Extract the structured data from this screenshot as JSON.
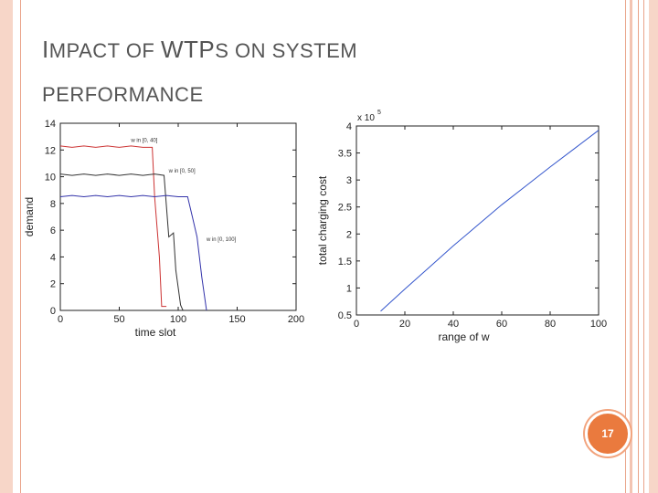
{
  "slide": {
    "title_line1_a": "I",
    "title_line1_b": "MPACT OF ",
    "title_line1_c": "WTP",
    "title_line1_d": "S ON SYSTEM",
    "title_line2": "PERFORMANCE",
    "page_number": "17",
    "accent_color": "#ea7a3e"
  },
  "chart_data": [
    {
      "type": "line",
      "title": "",
      "xlabel": "time slot",
      "ylabel": "demand",
      "xlim": [
        0,
        200
      ],
      "ylim": [
        0,
        14
      ],
      "xticks": [
        0,
        50,
        100,
        150,
        200
      ],
      "yticks": [
        0,
        2,
        4,
        6,
        8,
        10,
        12,
        14
      ],
      "grid": false,
      "series": [
        {
          "name": "w in [0, 40]",
          "color": "#cc3333",
          "x": [
            0,
            10,
            20,
            30,
            40,
            50,
            60,
            70,
            78,
            80,
            84,
            86,
            90
          ],
          "y": [
            12.3,
            12.2,
            12.3,
            12.2,
            12.3,
            12.2,
            12.3,
            12.2,
            12.2,
            8.5,
            4.0,
            0.3,
            0.3
          ]
        },
        {
          "name": "w in [0, 50]",
          "color": "#333333",
          "x": [
            0,
            10,
            20,
            30,
            40,
            50,
            60,
            70,
            80,
            88,
            92,
            96,
            98,
            102,
            104
          ],
          "y": [
            10.2,
            10.1,
            10.2,
            10.1,
            10.2,
            10.1,
            10.2,
            10.1,
            10.2,
            10.1,
            5.5,
            5.8,
            3.0,
            0.4,
            0.0
          ]
        },
        {
          "name": "w in [0, 100]",
          "color": "#3333aa",
          "x": [
            0,
            10,
            20,
            30,
            40,
            50,
            60,
            70,
            80,
            90,
            100,
            108,
            112,
            116,
            120,
            124
          ],
          "y": [
            8.5,
            8.6,
            8.5,
            8.6,
            8.5,
            8.6,
            8.5,
            8.6,
            8.5,
            8.6,
            8.5,
            8.5,
            7.0,
            5.5,
            2.5,
            0.0
          ]
        }
      ]
    },
    {
      "type": "line",
      "title": "",
      "xlabel": "range of w",
      "ylabel": "total charging cost",
      "exponent_label": "x 10",
      "exponent_power": "5",
      "xlim": [
        0,
        100
      ],
      "ylim": [
        0.5,
        4
      ],
      "xticks": [
        0,
        20,
        40,
        60,
        80,
        100
      ],
      "yticks": [
        0.5,
        1,
        1.5,
        2,
        2.5,
        3,
        3.5,
        4
      ],
      "grid": false,
      "series": [
        {
          "color": "#3355cc",
          "x": [
            10,
            20,
            30,
            40,
            50,
            60,
            70,
            80,
            90,
            100
          ],
          "y": [
            0.57,
            0.98,
            1.38,
            1.78,
            2.16,
            2.54,
            2.89,
            3.24,
            3.58,
            3.92
          ]
        }
      ]
    }
  ]
}
